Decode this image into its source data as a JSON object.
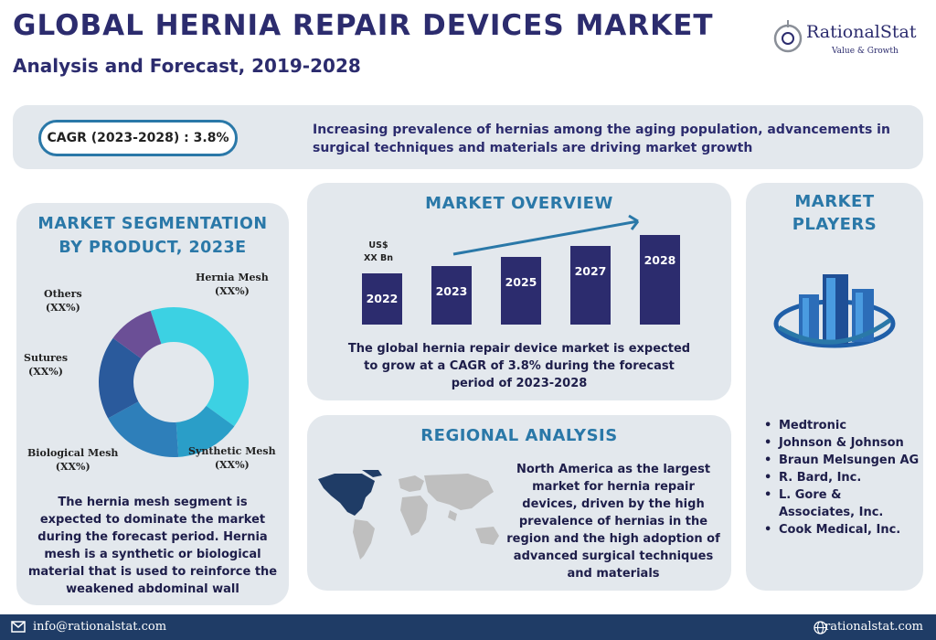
{
  "header": {
    "title": "GLOBAL HERNIA REPAIR DEVICES MARKET",
    "subtitle": "Analysis and Forecast, 2019-2028"
  },
  "logo": {
    "name": "RationalStat",
    "tagline": "Value & Growth",
    "icon": "logo-mark-icon"
  },
  "banner": {
    "cagr": "CAGR (2023-2028) : 3.8%",
    "text": "Increasing prevalence of hernias among the aging population, advancements in surgical techniques and materials are driving market growth"
  },
  "segmentation": {
    "title_line1": "MARKET SEGMENTATION",
    "title_line2": "BY  PRODUCT, 2023E",
    "description": "The hernia mesh segment is expected to dominate the market during the forecast period. Hernia mesh is a synthetic or biological material that is used to reinforce the weakened abdominal wall"
  },
  "overview": {
    "title": "MARKET OVERVIEW",
    "unit_line1": "US$",
    "unit_line2": "XX Bn",
    "description": "The global hernia repair device market is expected to grow at a CAGR of 3.8% during the forecast period of 2023-2028"
  },
  "regional": {
    "title": "REGIONAL ANALYSIS",
    "description": "North America as the largest market for hernia repair devices, driven by the high prevalence of hernias in the region and the high adoption of advanced surgical techniques and materials",
    "icon": "world-map-icon",
    "highlight_color": "#1f3c66"
  },
  "players": {
    "title_line1": "MARKET",
    "title_line2": "PLAYERS",
    "icon": "buildings-icon",
    "items": [
      "Medtronic",
      "Johnson & Johnson",
      "Braun Melsungen AG",
      "R. Bard, Inc.",
      "L. Gore & Associates, Inc.",
      "Cook Medical, Inc."
    ]
  },
  "footer": {
    "email": "info@rationalstat.com",
    "website": "rationalstat.com"
  },
  "colors": {
    "accent": "#2a78a8",
    "navy": "#2c2c6e",
    "panel": "#e3e8ed"
  },
  "chart_data": [
    {
      "type": "pie",
      "title": "MARKET SEGMENTATION BY PRODUCT, 2023E",
      "categories": [
        "Hernia Mesh",
        "Synthetic Mesh",
        "Biological Mesh",
        "Sutures",
        "Others"
      ],
      "values": [
        40,
        14,
        18,
        18,
        10
      ],
      "value_labels": [
        "(XX%)",
        "(XX%)",
        "(XX%)",
        "(XX%)",
        "(XX%)"
      ],
      "colors": [
        "#3cd1e3",
        "#2a9ec8",
        "#2e7fba",
        "#2a5a9c",
        "#6b4f96"
      ],
      "donut": true
    },
    {
      "type": "bar",
      "title": "MARKET OVERVIEW",
      "categories": [
        "2022",
        "2023",
        "2025",
        "2027",
        "2028"
      ],
      "values": [
        56,
        64,
        74,
        86,
        98
      ],
      "ylabel": "US$ XX Bn",
      "color": "#2c2c6e",
      "trend_arrow": true
    }
  ]
}
